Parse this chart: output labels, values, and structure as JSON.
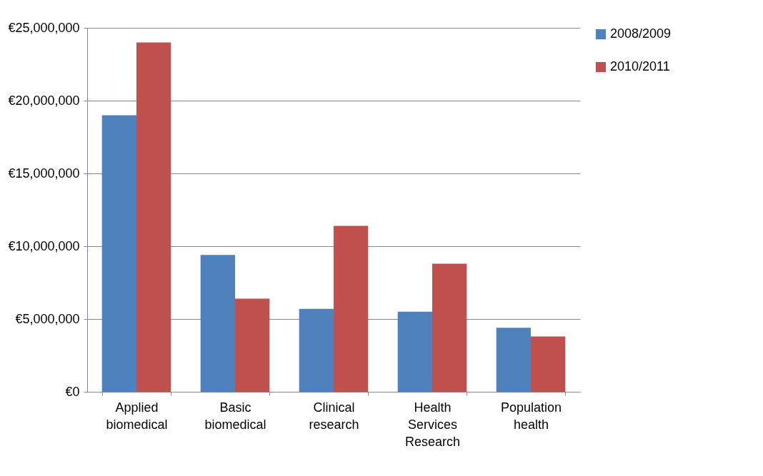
{
  "chart_data": {
    "type": "bar",
    "categories": [
      "Applied\nbiomedical",
      "Basic\nbiomedical",
      "Clinical\nresearch",
      "Health\nServices\nResearch",
      "Population\nhealth"
    ],
    "series": [
      {
        "name": "2008/2009",
        "color": "#4f81bd",
        "values": [
          19000000,
          9400000,
          5700000,
          5500000,
          4400000
        ]
      },
      {
        "name": "2010/2011",
        "color": "#c0504d",
        "values": [
          24000000,
          6400000,
          11400000,
          8800000,
          3800000
        ]
      }
    ],
    "ylim": [
      0,
      25000000
    ],
    "yticks": [
      {
        "value": 0,
        "label": "€0"
      },
      {
        "value": 5000000,
        "label": "€5,000,000"
      },
      {
        "value": 10000000,
        "label": "€10,000,000"
      },
      {
        "value": 15000000,
        "label": "€15,000,000"
      },
      {
        "value": 20000000,
        "label": "€20,000,000"
      },
      {
        "value": 25000000,
        "label": "€25,000,000"
      }
    ],
    "grid": "y",
    "legend": "right"
  }
}
